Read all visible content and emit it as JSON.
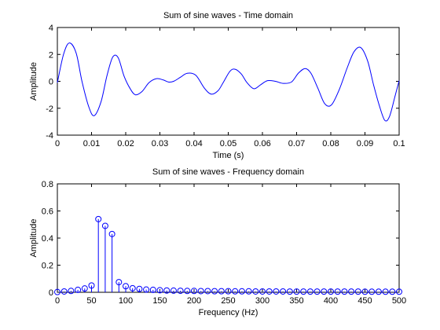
{
  "chart_data": [
    {
      "type": "line",
      "title": "Sum of sine waves - Time domain",
      "xlabel": "Time (s)",
      "ylabel": "Amplitude",
      "xlim": [
        0,
        0.1
      ],
      "ylim": [
        -4,
        4
      ],
      "xticks": [
        "0",
        "0.01",
        "0.02",
        "0.03",
        "0.04",
        "0.05",
        "0.06",
        "0.07",
        "0.08",
        "0.09",
        "0.1"
      ],
      "yticks": [
        "-4",
        "-2",
        "0",
        "2",
        "4"
      ],
      "grid": false,
      "color": "#0000ff",
      "x": [
        0.0,
        0.0018,
        0.0035,
        0.0055,
        0.0072,
        0.0092,
        0.0108,
        0.0128,
        0.0145,
        0.0162,
        0.0178,
        0.0195,
        0.0212,
        0.0228,
        0.0248,
        0.0268,
        0.029,
        0.031,
        0.0325,
        0.034,
        0.036,
        0.038,
        0.0405,
        0.043,
        0.045,
        0.047,
        0.0485,
        0.0505,
        0.052,
        0.0538,
        0.0555,
        0.0575,
        0.0595,
        0.0615,
        0.0638,
        0.066,
        0.0685,
        0.0705,
        0.0725,
        0.0742,
        0.0762,
        0.0782,
        0.0802,
        0.0825,
        0.0848,
        0.0868,
        0.0888,
        0.0908,
        0.0925,
        0.0942,
        0.0958,
        0.0972,
        0.0988,
        0.1
      ],
      "y": [
        -0.1,
        2.0,
        2.85,
        2.1,
        0.0,
        -1.9,
        -2.55,
        -1.5,
        0.4,
        1.8,
        1.75,
        0.4,
        -0.5,
        -1.0,
        -0.75,
        -0.1,
        0.2,
        0.1,
        -0.05,
        0.0,
        0.3,
        0.6,
        0.45,
        -0.5,
        -0.95,
        -0.7,
        -0.1,
        0.75,
        0.9,
        0.55,
        -0.1,
        -0.55,
        -0.25,
        0.05,
        0.0,
        -0.15,
        -0.05,
        0.6,
        0.95,
        0.6,
        -0.5,
        -1.65,
        -1.75,
        -0.6,
        1.0,
        2.2,
        2.5,
        1.5,
        -0.25,
        -1.8,
        -2.9,
        -2.6,
        -1.1,
        0.05
      ]
    },
    {
      "type": "stem",
      "title": "Sum of sine waves - Frequency domain",
      "xlabel": "Frequency (Hz)",
      "ylabel": "Amplitude",
      "xlim": [
        0,
        500
      ],
      "ylim": [
        0,
        0.8
      ],
      "xticks": [
        "0",
        "50",
        "100",
        "150",
        "200",
        "250",
        "300",
        "350",
        "400",
        "450",
        "500"
      ],
      "yticks": [
        "0",
        "0.2",
        "0.4",
        "0.6",
        "0.8"
      ],
      "grid": false,
      "color": "#0000ff",
      "x": [
        0,
        10,
        20,
        30,
        40,
        50,
        60,
        70,
        80,
        90,
        100,
        110,
        120,
        130,
        140,
        150,
        160,
        170,
        180,
        190,
        200,
        210,
        220,
        230,
        240,
        250,
        260,
        270,
        280,
        290,
        300,
        310,
        320,
        330,
        340,
        350,
        360,
        370,
        380,
        390,
        400,
        410,
        420,
        430,
        440,
        450,
        460,
        470,
        480,
        490,
        500
      ],
      "y": [
        0.002,
        0.006,
        0.01,
        0.018,
        0.028,
        0.05,
        0.54,
        0.49,
        0.43,
        0.075,
        0.045,
        0.03,
        0.025,
        0.02,
        0.018,
        0.015,
        0.013,
        0.012,
        0.011,
        0.01,
        0.01,
        0.009,
        0.009,
        0.008,
        0.008,
        0.008,
        0.007,
        0.007,
        0.007,
        0.006,
        0.006,
        0.006,
        0.006,
        0.006,
        0.005,
        0.005,
        0.005,
        0.005,
        0.005,
        0.005,
        0.005,
        0.005,
        0.005,
        0.005,
        0.005,
        0.004,
        0.004,
        0.004,
        0.004,
        0.004,
        0.004
      ]
    }
  ]
}
